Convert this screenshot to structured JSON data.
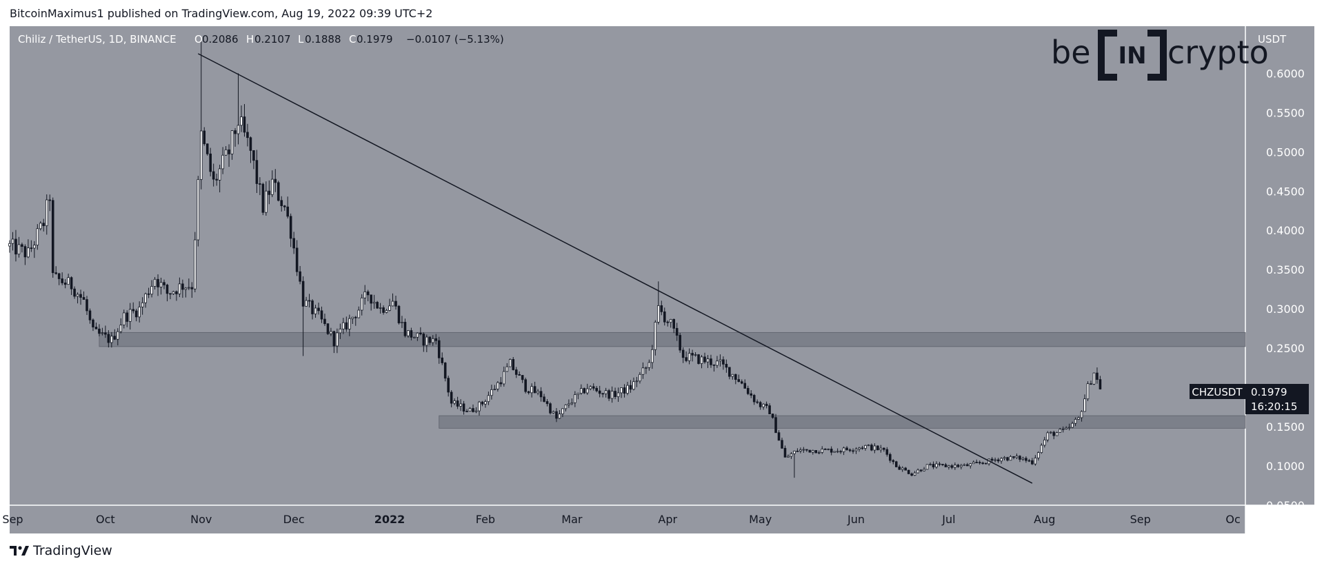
{
  "header": {
    "publisher_line": "BitcoinMaximus1 published on TradingView.com, Aug 19, 2022 09:39 UTC+2"
  },
  "footer": {
    "brand": "TradingView",
    "logo_icon": "tradingview-logo-icon"
  },
  "watermark": {
    "brand": "beincrypto",
    "text_left": "be",
    "text_box": "IN",
    "text_right": "crypto"
  },
  "symbol_info": {
    "name": "Chiliz / TetherUS, 1D, BINANCE",
    "open_label": "O",
    "open": "0.2086",
    "high_label": "H",
    "high": "0.2107",
    "low_label": "L",
    "low": "0.1888",
    "close_label": "C",
    "close": "0.1979",
    "change": "−0.0107 (−5.13%)"
  },
  "price_axis": {
    "currency": "USDT",
    "ticks": [
      "0.6000",
      "0.5500",
      "0.5000",
      "0.4500",
      "0.4000",
      "0.3500",
      "0.3000",
      "0.2500",
      "0.1500",
      "0.1000",
      "0.0500"
    ]
  },
  "time_axis": {
    "ticks": [
      "Sep",
      "Oct",
      "Nov",
      "Dec",
      "2022",
      "Feb",
      "Mar",
      "Apr",
      "May",
      "Jun",
      "Jul",
      "Aug",
      "Sep",
      "Oc"
    ]
  },
  "price_label": {
    "ticker": "CHZUSDT",
    "price": "0.1979",
    "countdown": "16:20:15"
  },
  "colors": {
    "chart_bg": "#9598a1",
    "candle_up": "#ffffff",
    "candle_down": "#131722",
    "zone": "#787b86",
    "axis_bg": "#9598a1"
  },
  "chart_data": {
    "type": "candlestick",
    "title": "Chiliz / TetherUS, 1D, BINANCE",
    "ylabel": "USDT",
    "ylim": [
      0.05,
      0.66
    ],
    "x_range": [
      "2021-08-31",
      "2022-10-05"
    ],
    "trendline": {
      "start": {
        "date": "2021-10-31",
        "price": 0.625
      },
      "end": {
        "date": "2022-07-28",
        "price": 0.078
      }
    },
    "horizontal_zones": [
      {
        "from": "2021-09-29",
        "to": "2022-10-05",
        "low": 0.252,
        "high": 0.27
      },
      {
        "from": "2022-01-17",
        "to": "2022-10-05",
        "low": 0.148,
        "high": 0.164
      }
    ],
    "anchor_points": [
      [
        "2021-08-31",
        0.38
      ],
      [
        "2021-09-06",
        0.37
      ],
      [
        "2021-09-11",
        0.41
      ],
      [
        "2021-09-13",
        0.445
      ],
      [
        "2021-09-14",
        0.34
      ],
      [
        "2021-09-20",
        0.33
      ],
      [
        "2021-09-24",
        0.31
      ],
      [
        "2021-09-27",
        0.27
      ],
      [
        "2021-10-03",
        0.26
      ],
      [
        "2021-10-07",
        0.29
      ],
      [
        "2021-10-12",
        0.3
      ],
      [
        "2021-10-17",
        0.34
      ],
      [
        "2021-10-21",
        0.32
      ],
      [
        "2021-10-26",
        0.33
      ],
      [
        "2021-10-29",
        0.33
      ],
      [
        "2021-11-01",
        0.52
      ],
      [
        "2021-11-05",
        0.46
      ],
      [
        "2021-11-10",
        0.5
      ],
      [
        "2021-11-13",
        0.54
      ],
      [
        "2021-11-17",
        0.5
      ],
      [
        "2021-11-21",
        0.43
      ],
      [
        "2021-11-24",
        0.46
      ],
      [
        "2021-11-28",
        0.43
      ],
      [
        "2021-11-30",
        0.4
      ],
      [
        "2021-12-04",
        0.31
      ],
      [
        "2021-12-09",
        0.29
      ],
      [
        "2021-12-14",
        0.26
      ],
      [
        "2021-12-18",
        0.28
      ],
      [
        "2021-12-22",
        0.3
      ],
      [
        "2021-12-25",
        0.32
      ],
      [
        "2021-12-29",
        0.3
      ],
      [
        "2022-01-02",
        0.31
      ],
      [
        "2022-01-06",
        0.27
      ],
      [
        "2022-01-12",
        0.26
      ],
      [
        "2022-01-16",
        0.26
      ],
      [
        "2022-01-21",
        0.18
      ],
      [
        "2022-01-27",
        0.17
      ],
      [
        "2022-01-31",
        0.18
      ],
      [
        "2022-02-06",
        0.21
      ],
      [
        "2022-02-09",
        0.23
      ],
      [
        "2022-02-14",
        0.2
      ],
      [
        "2022-02-19",
        0.19
      ],
      [
        "2022-02-24",
        0.16
      ],
      [
        "2022-02-28",
        0.18
      ],
      [
        "2022-03-06",
        0.2
      ],
      [
        "2022-03-14",
        0.19
      ],
      [
        "2022-03-20",
        0.2
      ],
      [
        "2022-03-26",
        0.23
      ],
      [
        "2022-03-29",
        0.3
      ],
      [
        "2022-04-02",
        0.28
      ],
      [
        "2022-04-06",
        0.24
      ],
      [
        "2022-04-12",
        0.235
      ],
      [
        "2022-04-18",
        0.23
      ],
      [
        "2022-04-24",
        0.21
      ],
      [
        "2022-04-30",
        0.18
      ],
      [
        "2022-05-04",
        0.17
      ],
      [
        "2022-05-09",
        0.11
      ],
      [
        "2022-05-13",
        0.12
      ],
      [
        "2022-05-20",
        0.12
      ],
      [
        "2022-05-27",
        0.12
      ],
      [
        "2022-06-04",
        0.125
      ],
      [
        "2022-06-10",
        0.12
      ],
      [
        "2022-06-14",
        0.1
      ],
      [
        "2022-06-19",
        0.09
      ],
      [
        "2022-06-24",
        0.1
      ],
      [
        "2022-06-30",
        0.1
      ],
      [
        "2022-07-06",
        0.1
      ],
      [
        "2022-07-13",
        0.105
      ],
      [
        "2022-07-18",
        0.11
      ],
      [
        "2022-07-24",
        0.11
      ],
      [
        "2022-07-28",
        0.105
      ],
      [
        "2022-08-02",
        0.14
      ],
      [
        "2022-08-08",
        0.145
      ],
      [
        "2022-08-12",
        0.16
      ],
      [
        "2022-08-15",
        0.2
      ],
      [
        "2022-08-17",
        0.22
      ],
      [
        "2022-08-19",
        0.198
      ]
    ]
  }
}
